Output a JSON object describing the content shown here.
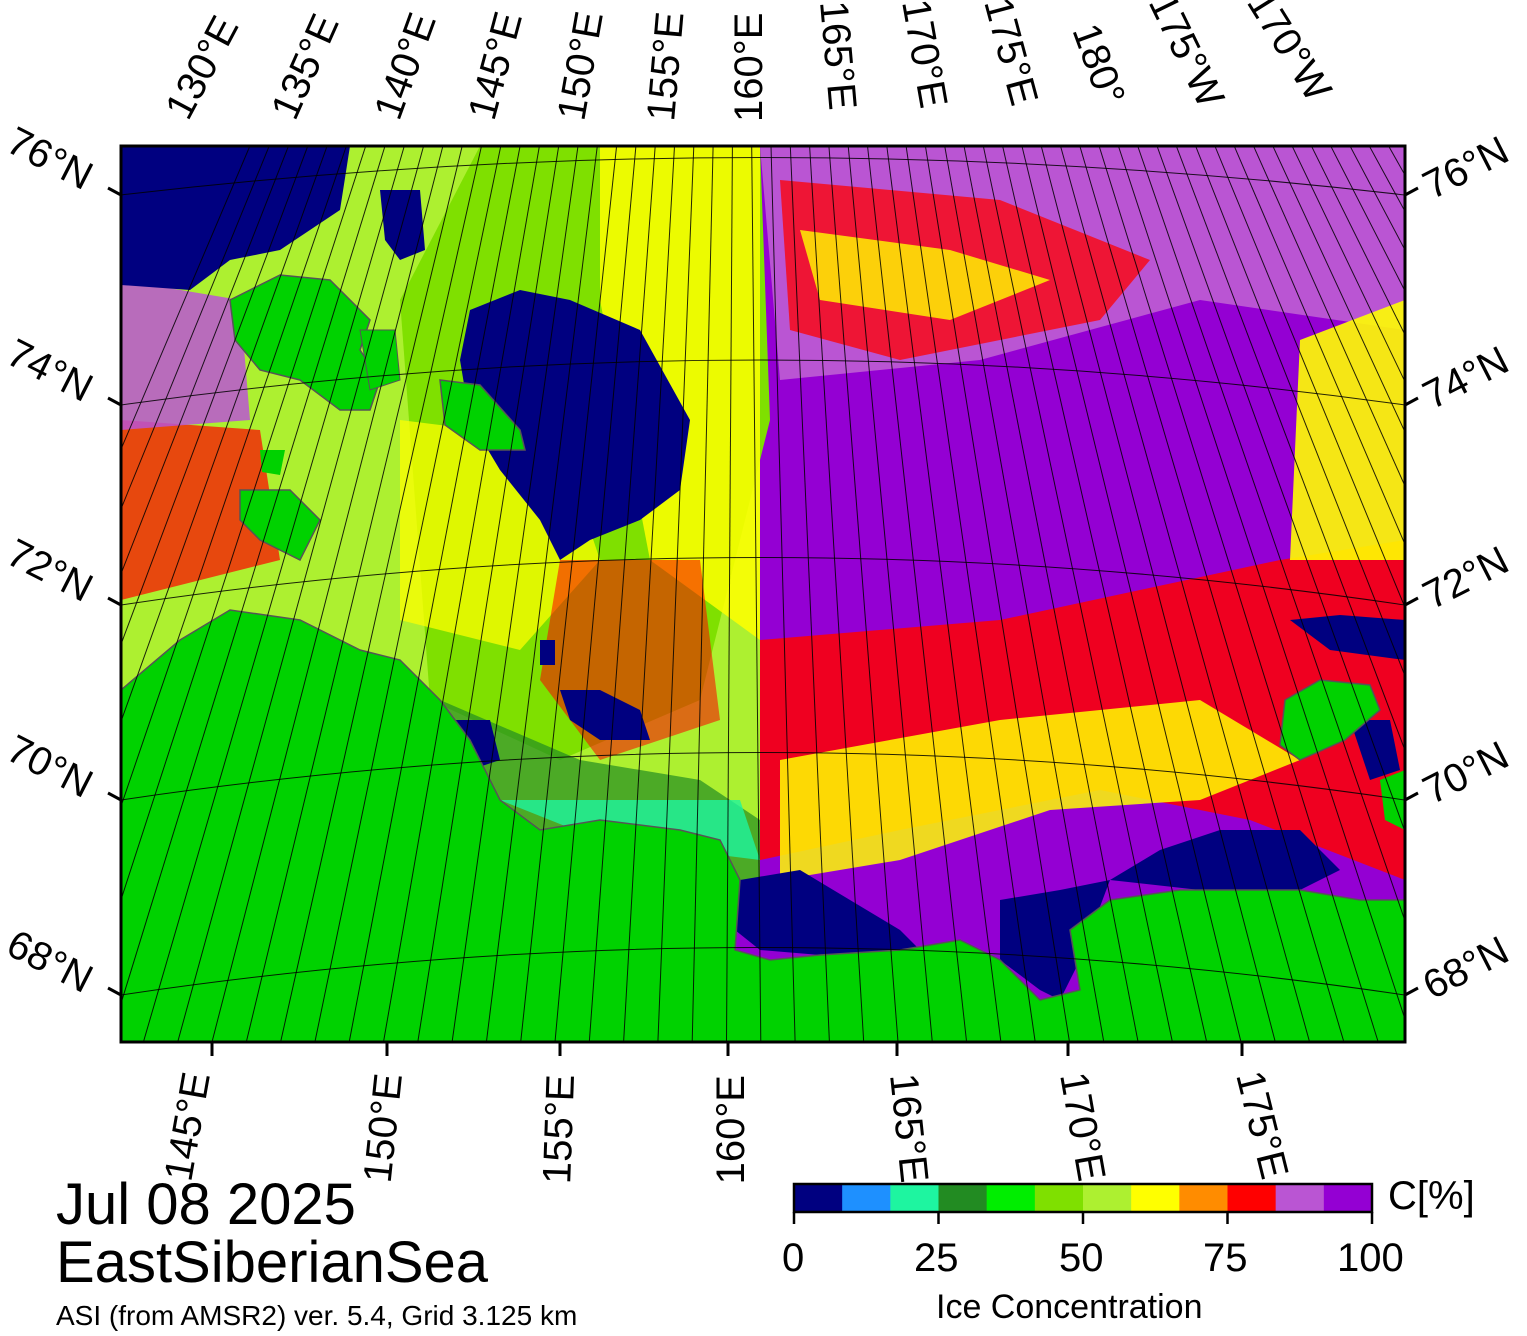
{
  "title": {
    "date": "Jul 08 2025",
    "region": "EastSiberianSea",
    "source": "ASI (from AMSR2) ver. 5.4,  Grid 3.125 km"
  },
  "map": {
    "top_lon_labels": [
      "130°E",
      "135°E",
      "140°E",
      "145°E",
      "150°E",
      "155°E",
      "160°E",
      "165°E",
      "170°E",
      "175°E",
      "180°",
      "175°W",
      "170°W"
    ],
    "bottom_lon_labels": [
      "145°E",
      "150°E",
      "155°E",
      "160°E",
      "165°E",
      "170°E",
      "175°E"
    ],
    "left_lat_labels": [
      "76°N",
      "74°N",
      "72°N",
      "70°N",
      "68°N"
    ],
    "right_lat_labels": [
      "76°N",
      "74°N",
      "72°N",
      "70°N",
      "68°N"
    ]
  },
  "colorbar": {
    "title": "Ice Concentration",
    "unit": "C[%]",
    "ticks": [
      "0",
      "25",
      "50",
      "75",
      "100"
    ],
    "colors": [
      "#000080",
      "#1e90ff",
      "#1ef5a0",
      "#228b22",
      "#00ee00",
      "#7fe000",
      "#adf030",
      "#ffff00",
      "#ff8c00",
      "#ff0000",
      "#ba55d3",
      "#9400d3"
    ]
  },
  "colors": {
    "land": "#00d200",
    "open_water": "#000080",
    "high_ice": "#9400d3"
  }
}
